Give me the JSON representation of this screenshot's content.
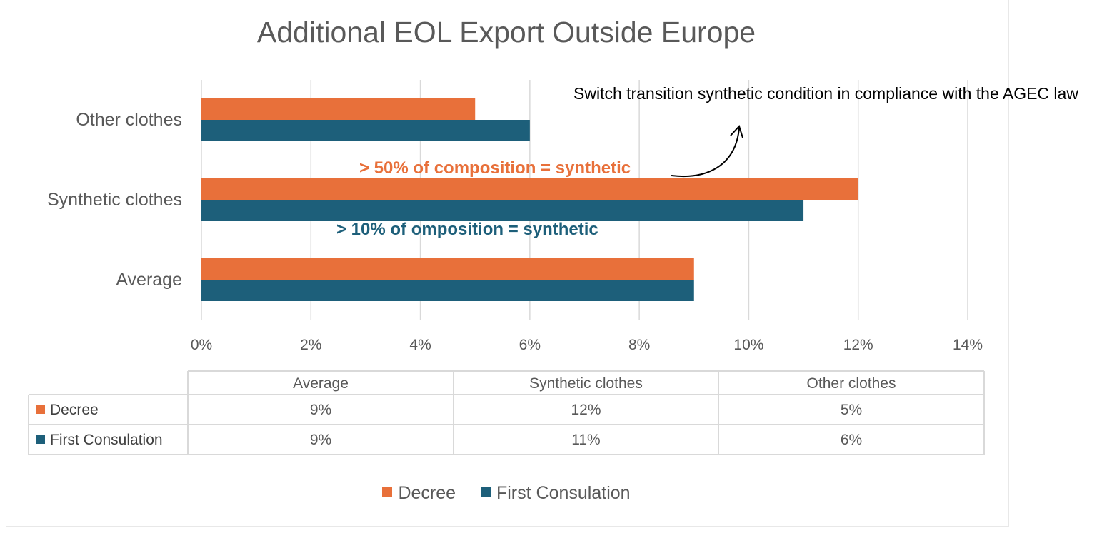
{
  "chart_data": {
    "type": "bar",
    "orientation": "horizontal",
    "title": "Additional EOL Export Outside Europe",
    "categories": [
      "Average",
      "Synthetic clothes",
      "Other clothes"
    ],
    "series": [
      {
        "name": "Decree",
        "color": "#e8703a",
        "values": [
          9,
          12,
          5
        ],
        "labels": [
          "9%",
          "12%",
          "5%"
        ]
      },
      {
        "name": "First Consulation",
        "color": "#1d5f7a",
        "values": [
          9,
          11,
          6
        ],
        "labels": [
          "9%",
          "11%",
          "6%"
        ]
      }
    ],
    "xlim": [
      0,
      14
    ],
    "x_ticks": [
      "0%",
      "2%",
      "4%",
      "6%",
      "8%",
      "10%",
      "12%",
      "14%"
    ],
    "grid": "vertical",
    "legend": "bottom",
    "data_table": true,
    "annotations": {
      "note": "Switch transition synthetic condition in compliance with the AGEC law",
      "decree_condition": "> 50% of composition = synthetic",
      "first_condition": "> 10% of omposition = synthetic"
    }
  }
}
